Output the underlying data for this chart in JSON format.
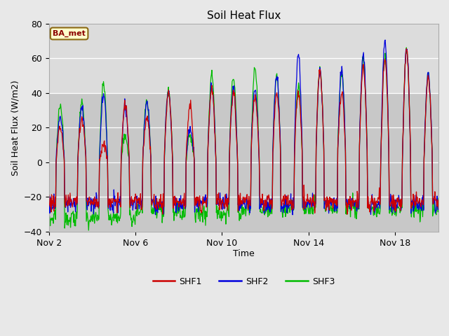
{
  "title": "Soil Heat Flux",
  "xlabel": "Time",
  "ylabel": "Soil Heat Flux (W/m2)",
  "ylim": [
    -40,
    80
  ],
  "annotation_text": "BA_met",
  "legend_labels": [
    "SHF1",
    "SHF2",
    "SHF3"
  ],
  "colors": {
    "SHF1": "#cc0000",
    "SHF2": "#0000dd",
    "SHF3": "#00bb00"
  },
  "fig_bg_color": "#e8e8e8",
  "plot_bg_upper": "#dcdcdc",
  "plot_bg_lower": "#c8c8c8",
  "grid_color": "#ffffff",
  "x_tick_labels": [
    "Nov 2",
    "Nov 6",
    "Nov 10",
    "Nov 14",
    "Nov 18"
  ],
  "x_tick_positions": [
    0,
    4,
    8,
    12,
    16
  ],
  "y_ticks": [
    -40,
    -20,
    0,
    20,
    40,
    60,
    80
  ],
  "xlim": [
    0,
    18
  ],
  "n_days": 18,
  "n_per_day": 48
}
